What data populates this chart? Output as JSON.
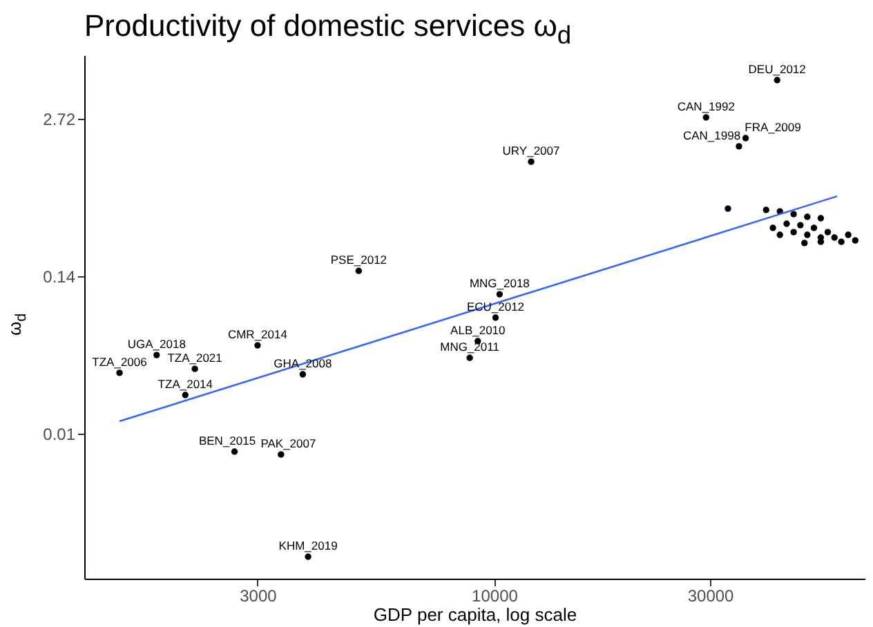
{
  "chart_data": {
    "type": "scatter",
    "title": "Productivity of domestic services ω$_{d}$",
    "xlabel": "GDP per capita, log scale",
    "ylabel": "ω$_{d}$",
    "log": "xy",
    "xlim": [
      1242,
      65900
    ],
    "xticks": [
      3000,
      10000,
      30000
    ],
    "ylim": [
      0.000426,
      9.12
    ],
    "yticks": [
      {
        "value": 2.718,
        "label": "2.72"
      },
      {
        "value": 0.1353,
        "label": "0.14"
      },
      {
        "value": 0.006738,
        "label": "0.01"
      }
    ],
    "series": [
      {
        "marker": "circle",
        "color": "#000000",
        "x": [
          1486,
          1795,
          2180,
          2077,
          3000,
          3776,
          2668,
          3380,
          3880,
          5020,
          12070,
          10280,
          10070,
          9200,
          8830,
          42200,
          29400,
          35950,
          34750,
          32860,
          39900,
          42800,
          45900,
          49200,
          52700,
          41300,
          44300,
          47500,
          50900,
          54600,
          42800,
          45900,
          49200,
          52700,
          56500,
          58500,
          52700,
          48500,
          60600,
          62800
        ],
        "values": [
          0.0215,
          0.0302,
          0.0232,
          0.01409,
          0.0363,
          0.0209,
          0.00479,
          0.00454,
          0.000647,
          0.15,
          1.2,
          0.0961,
          0.0615,
          0.0393,
          0.0286,
          5.68,
          2.79,
          1.88,
          1.61,
          0.491,
          0.479,
          0.466,
          0.442,
          0.42,
          0.409,
          0.34,
          0.368,
          0.358,
          0.34,
          0.314,
          0.298,
          0.314,
          0.298,
          0.283,
          0.283,
          0.261,
          0.261,
          0.255,
          0.298,
          0.268
        ]
      },
      {
        "type": "line",
        "color": "#3366ff",
        "x": [
          1486,
          57300
        ],
        "values": [
          0.00854,
          0.622
        ]
      }
    ],
    "annotations": [
      {
        "text": "TZA_2006",
        "x": 1486,
        "y": 0.0215
      },
      {
        "text": "UGA_2018",
        "x": 1795,
        "y": 0.0302
      },
      {
        "text": "TZA_2021",
        "x": 2180,
        "y": 0.0232
      },
      {
        "text": "TZA_2014",
        "x": 2077,
        "y": 0.01409
      },
      {
        "text": "CMR_2014",
        "x": 3000,
        "y": 0.0363
      },
      {
        "text": "GHA_2008",
        "x": 3776,
        "y": 0.0209
      },
      {
        "text": "BEN_2015",
        "x": 2668,
        "y": 0.00479
      },
      {
        "text": "PAK_2007",
        "x": 3380,
        "y": 0.00454
      },
      {
        "text": "KHM_2019",
        "x": 3880,
        "y": 0.000647
      },
      {
        "text": "PSE_2012",
        "x": 5020,
        "y": 0.15
      },
      {
        "text": "URY_2007",
        "x": 12070,
        "y": 1.2
      },
      {
        "text": "MNG_2018",
        "x": 10280,
        "y": 0.0961
      },
      {
        "text": "ECU_2012",
        "x": 10070,
        "y": 0.0615
      },
      {
        "text": "ALB_2010",
        "x": 9200,
        "y": 0.0393
      },
      {
        "text": "MNG_2011",
        "x": 8830,
        "y": 0.0286
      },
      {
        "text": "DEU_2012",
        "x": 42200,
        "y": 5.68
      },
      {
        "text": "CAN_1992",
        "x": 29400,
        "y": 2.79
      },
      {
        "text": "FRA_2009",
        "x": 35950,
        "y": 1.88
      },
      {
        "text": "CAN_1998",
        "x": 34750,
        "y": 1.61
      }
    ]
  }
}
